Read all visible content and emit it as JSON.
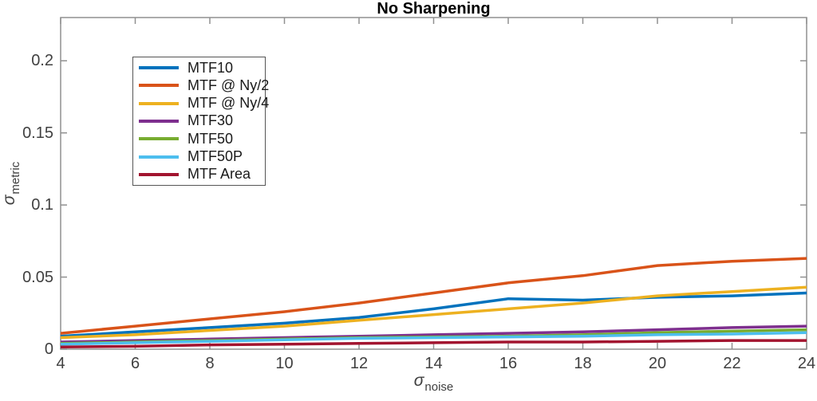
{
  "title": "No Sharpening",
  "axes": {
    "xlabel_symbol": "σ",
    "xlabel_sub": "noise",
    "ylabel_symbol": "σ",
    "ylabel_sub": "metric",
    "x_tick_labels": [
      "4",
      "6",
      "8",
      "10",
      "12",
      "14",
      "16",
      "18",
      "20",
      "22",
      "24"
    ],
    "y_tick_labels": [
      "0",
      "0.05",
      "0.1",
      "0.15",
      "0.2"
    ],
    "x_ticks": [
      4,
      6,
      8,
      10,
      12,
      14,
      16,
      18,
      20,
      22,
      24
    ],
    "y_ticks": [
      0,
      0.05,
      0.1,
      0.15,
      0.2
    ]
  },
  "chart_data": {
    "type": "line",
    "title": "No Sharpening",
    "xlabel": "σ_noise",
    "ylabel": "σ_metric",
    "xlim": [
      4,
      24
    ],
    "ylim": [
      0,
      0.23
    ],
    "grid": false,
    "legend_position": "upper-left-inside",
    "x": [
      4,
      6,
      8,
      10,
      12,
      14,
      16,
      18,
      20,
      22,
      24
    ],
    "series": [
      {
        "name": "MTF10",
        "color": "#0072BD",
        "values": [
          0.009,
          0.012,
          0.015,
          0.018,
          0.022,
          0.028,
          0.035,
          0.034,
          0.036,
          0.037,
          0.039
        ]
      },
      {
        "name": "MTF @ Ny/2",
        "color": "#D95319",
        "values": [
          0.011,
          0.016,
          0.021,
          0.026,
          0.032,
          0.039,
          0.046,
          0.051,
          0.058,
          0.061,
          0.063
        ]
      },
      {
        "name": "MTF @ Ny/4",
        "color": "#EDB120",
        "values": [
          0.008,
          0.01,
          0.013,
          0.016,
          0.02,
          0.024,
          0.028,
          0.032,
          0.037,
          0.04,
          0.043
        ]
      },
      {
        "name": "MTF30",
        "color": "#7E2F8E",
        "values": [
          0.005,
          0.006,
          0.007,
          0.008,
          0.009,
          0.01,
          0.011,
          0.012,
          0.0135,
          0.015,
          0.016
        ]
      },
      {
        "name": "MTF50",
        "color": "#77AC30",
        "values": [
          0.004,
          0.005,
          0.006,
          0.007,
          0.008,
          0.0085,
          0.009,
          0.01,
          0.0115,
          0.0125,
          0.0135
        ]
      },
      {
        "name": "MTF50P",
        "color": "#4DBEEE",
        "values": [
          0.0035,
          0.0045,
          0.0055,
          0.0065,
          0.0075,
          0.008,
          0.0085,
          0.009,
          0.01,
          0.0105,
          0.0115
        ]
      },
      {
        "name": "MTF Area",
        "color": "#A2142F",
        "values": [
          0.0015,
          0.002,
          0.003,
          0.0035,
          0.004,
          0.0045,
          0.005,
          0.005,
          0.0055,
          0.006,
          0.006
        ]
      }
    ]
  },
  "colors": {
    "axis": "#909090",
    "tick_text": "#404040",
    "title_text": "#000000",
    "legend_border": "#555555",
    "background": "#ffffff"
  }
}
